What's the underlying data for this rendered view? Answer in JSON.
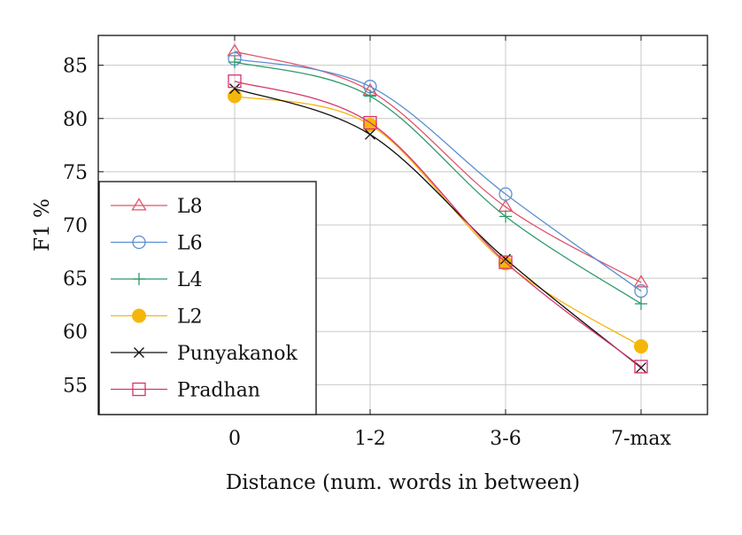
{
  "chart_data": {
    "type": "line",
    "title": "",
    "xlabel": "Distance (num. words in between)",
    "ylabel": "F1 %",
    "categories": [
      "0",
      "1-2",
      "3-6",
      "7-max"
    ],
    "ylim": [
      52.2,
      87.8
    ],
    "yticks": [
      55,
      60,
      65,
      70,
      75,
      80,
      85
    ],
    "grid": true,
    "legend_position": "lower-left",
    "series": [
      {
        "name": "L8",
        "values": [
          86.3,
          82.6,
          71.7,
          64.6
        ],
        "color": "#e0556b",
        "marker": "triangle-open"
      },
      {
        "name": "L6",
        "values": [
          85.6,
          83.0,
          72.9,
          63.8
        ],
        "color": "#5b8fd0",
        "marker": "circle-open"
      },
      {
        "name": "L4",
        "values": [
          85.3,
          82.1,
          70.8,
          62.6
        ],
        "color": "#2e9b6a",
        "marker": "plus"
      },
      {
        "name": "L2",
        "values": [
          82.1,
          79.4,
          66.4,
          58.6
        ],
        "color": "#f5b60c",
        "marker": "circle-filled"
      },
      {
        "name": "Punyakanok",
        "values": [
          82.8,
          78.5,
          66.8,
          56.6
        ],
        "color": "#111111",
        "marker": "x"
      },
      {
        "name": "Pradhan",
        "values": [
          83.5,
          79.6,
          66.5,
          56.7
        ],
        "color": "#d6336c",
        "marker": "square-open"
      }
    ]
  }
}
